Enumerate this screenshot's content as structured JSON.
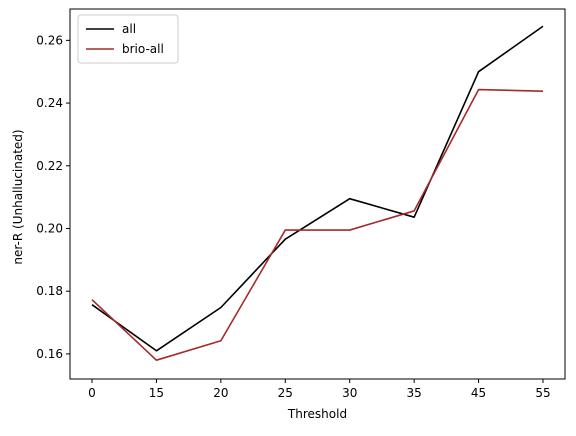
{
  "chart_data": {
    "type": "line",
    "title": "",
    "xlabel": "Threshold",
    "ylabel": "ner-R (Unhallucinated)",
    "categories": [
      "0",
      "15",
      "20",
      "25",
      "30",
      "35",
      "45",
      "55"
    ],
    "ylim": [
      0.152,
      0.27
    ],
    "yticks": [
      0.16,
      0.18,
      0.2,
      0.22,
      0.24,
      0.26
    ],
    "ytick_labels": [
      "0.16",
      "0.18",
      "0.20",
      "0.22",
      "0.24",
      "0.26"
    ],
    "grid": false,
    "legend_position": "top-left",
    "series": [
      {
        "name": "all",
        "color": "#000000",
        "values": [
          0.1757,
          0.161,
          0.1748,
          0.1966,
          0.2095,
          0.2036,
          0.25,
          0.2645
        ]
      },
      {
        "name": "brio-all",
        "color": "#a52a2a",
        "values": [
          0.1773,
          0.158,
          0.1642,
          0.1995,
          0.1995,
          0.2056,
          0.2443,
          0.2438
        ]
      }
    ]
  }
}
